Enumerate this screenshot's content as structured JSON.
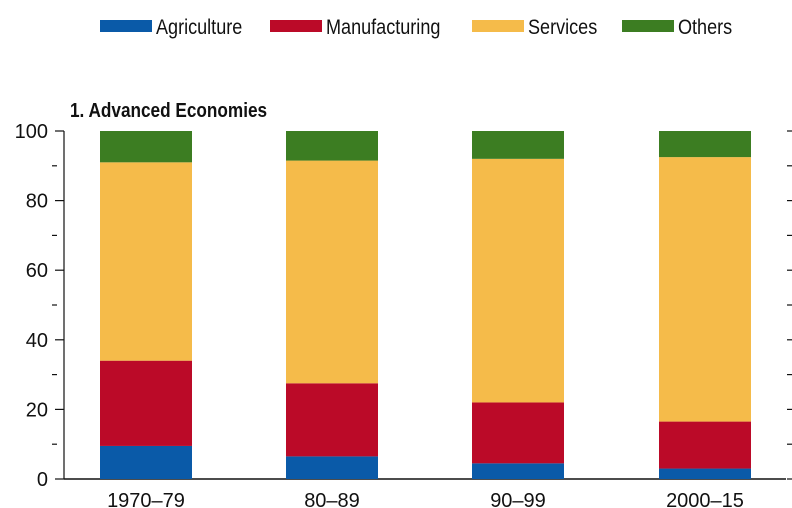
{
  "chart_data": {
    "type": "bar",
    "stacked": true,
    "title": "1. Advanced Economies",
    "categories": [
      "1970–79",
      "80–89",
      "90–99",
      "2000–15"
    ],
    "series": [
      {
        "name": "Agriculture",
        "color": "#0a5aa8",
        "values": [
          9.5,
          6.5,
          4.5,
          3
        ]
      },
      {
        "name": "Manufacturing",
        "color": "#bb0a28",
        "values": [
          24.5,
          21,
          17.5,
          13.5
        ]
      },
      {
        "name": "Services",
        "color": "#f5bb4a",
        "values": [
          57,
          64,
          70,
          76
        ]
      },
      {
        "name": "Others",
        "color": "#3c7d22",
        "values": [
          9,
          8.5,
          8,
          7.5
        ]
      }
    ],
    "ylim": [
      0,
      100
    ],
    "yticks": [
      0,
      20,
      40,
      60,
      80,
      100
    ],
    "legend_position": "top",
    "grid": false
  }
}
